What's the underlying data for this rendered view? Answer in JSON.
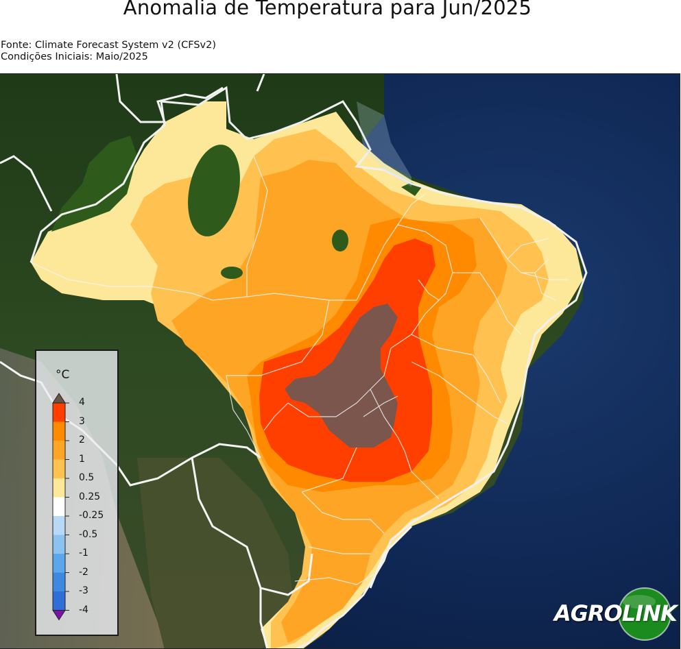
{
  "title": "Anomalia de Temperatura para Jun/2025",
  "source_line1": "Fonte: Climate Forecast System v2 (CFSv2)",
  "source_line2": "Condições Iniciais: Maio/2025",
  "legend": {
    "unit": "°C",
    "ticks": [
      "4",
      "3",
      "2",
      "1",
      "0.5",
      "0.25",
      "-0.25",
      "-0.5",
      "-1",
      "-2",
      "-3",
      "-4"
    ],
    "colors": [
      "#ff3f00",
      "#ff8a00",
      "#ffa525",
      "#ffc14f",
      "#fde89a",
      "#ffffff",
      "#b5d9f7",
      "#8cc2f0",
      "#5ca6eb",
      "#3f88e0",
      "#2f6ed6"
    ],
    "over_color": "#6b5347",
    "under_color": "#7a14a8"
  },
  "anomaly_colors": {
    "above_4": "#7a564c",
    "3_to_4": "#ff3f00",
    "2_to_3": "#ff8a00",
    "1_to_2": "#ffa525",
    "0.5_to_1": "#ffc14f",
    "0.25_to_0.5": "#fde89a",
    "near_zero": "#2e5a1c"
  },
  "logo": {
    "text_agro": "AGRO",
    "text_link": "LINK",
    "green": "#1b8a1f"
  }
}
